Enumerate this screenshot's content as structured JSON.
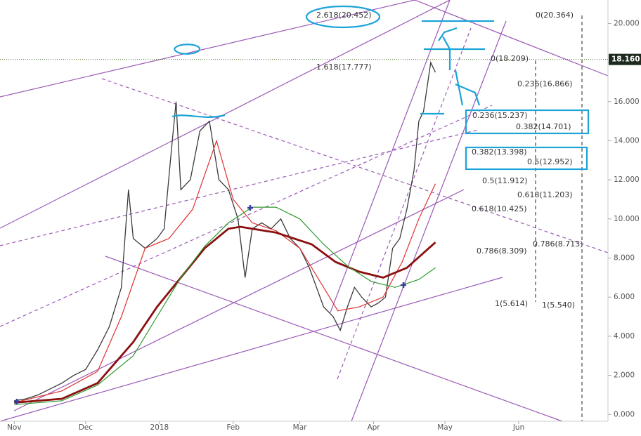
{
  "chart_data": {
    "type": "line",
    "xlim": [
      -6,
      249.5
    ],
    "xticks": [
      {
        "value": 0,
        "label": "Nov"
      },
      {
        "value": 30,
        "label": "Dec"
      },
      {
        "value": 61,
        "label": "2018"
      },
      {
        "value": 92,
        "label": "Feb"
      },
      {
        "value": 120,
        "label": "Mar"
      },
      {
        "value": 151,
        "label": "Apr"
      },
      {
        "value": 181,
        "label": "May"
      },
      {
        "value": 212,
        "label": "Jun"
      }
    ],
    "ylim": [
      -0.35,
      21.2
    ],
    "yticks": [
      {
        "value": 0,
        "label": "0.000"
      },
      {
        "value": 2,
        "label": "2.000"
      },
      {
        "value": 4,
        "label": "4.000"
      },
      {
        "value": 6,
        "label": "6.000"
      },
      {
        "value": 8,
        "label": "8.000"
      },
      {
        "value": 10,
        "label": "10.000"
      },
      {
        "value": 12,
        "label": "12.000"
      },
      {
        "value": 14,
        "label": "14.000"
      },
      {
        "value": 16,
        "label": "16.000"
      },
      {
        "value": 18,
        "label": "18.000"
      },
      {
        "value": 20,
        "label": "20.000"
      }
    ],
    "last_price": {
      "value": 18.16,
      "label": "18.160"
    },
    "series": [
      {
        "color": "#3a3a3a",
        "x": [
          0,
          5,
          10,
          15,
          20,
          25,
          30,
          35,
          40,
          45,
          48,
          50,
          55,
          60,
          63,
          66,
          68,
          70,
          74,
          78,
          82,
          86,
          90,
          94,
          97,
          100,
          104,
          108,
          112,
          116,
          120,
          124,
          127,
          130,
          134,
          137,
          140,
          143,
          146,
          150,
          153,
          156,
          159,
          162,
          165,
          168,
          170,
          172,
          175,
          177
        ],
        "values": [
          0.7,
          0.8,
          1.0,
          1.3,
          1.6,
          2.0,
          2.3,
          3.3,
          4.5,
          6.5,
          11.5,
          9.0,
          8.5,
          9.0,
          9.5,
          13.5,
          16.0,
          11.5,
          12.0,
          14.5,
          15.0,
          12.0,
          11.5,
          10.0,
          7.0,
          9.5,
          9.8,
          9.5,
          10.0,
          9.0,
          8.5,
          7.5,
          6.5,
          5.5,
          5.0,
          4.3,
          5.5,
          6.5,
          6.0,
          5.5,
          5.7,
          6.0,
          8.5,
          9.0,
          10.5,
          12.5,
          15.0,
          15.5,
          18.0,
          17.5
        ]
      },
      {
        "color": "#e03030",
        "x": [
          0,
          20,
          35,
          45,
          55,
          65,
          75,
          85,
          92,
          100,
          110,
          120,
          130,
          136,
          145,
          155,
          163,
          170,
          177
        ],
        "values": [
          0.6,
          1.2,
          2.2,
          5.0,
          8.5,
          9.0,
          10.5,
          14.0,
          11.0,
          9.8,
          9.4,
          8.5,
          6.5,
          5.3,
          5.5,
          6.0,
          7.8,
          10.0,
          11.8
        ]
      },
      {
        "color": "#8b1010",
        "x": [
          0,
          20,
          35,
          50,
          60,
          70,
          80,
          90,
          95,
          110,
          125,
          135,
          145,
          155,
          165,
          177
        ],
        "values": [
          0.6,
          0.8,
          1.6,
          3.7,
          5.5,
          7.0,
          8.5,
          9.5,
          9.6,
          9.3,
          8.7,
          7.8,
          7.3,
          7.0,
          7.5,
          8.8
        ]
      },
      {
        "color": "#2e9a2e",
        "x": [
          0,
          20,
          35,
          50,
          60,
          70,
          80,
          90,
          100,
          110,
          120,
          130,
          140,
          150,
          160,
          170,
          177
        ],
        "values": [
          0.5,
          0.7,
          1.5,
          3.0,
          5.0,
          7.0,
          8.6,
          9.8,
          10.6,
          10.6,
          10.0,
          8.7,
          7.6,
          6.8,
          6.5,
          6.9,
          7.5
        ]
      }
    ],
    "annotations": [
      "2.618(20.452)",
      "1.618(17.777)",
      "0(20.364)",
      "0(18.209)",
      "0.236(16.866)",
      "0.236(15.237)",
      "0.382(14.701)",
      "0.382(13.398)",
      "0.5(12.952)",
      "0.5(11.912)",
      "0.618(11.203)",
      "0.618(10.425)",
      "0.786(8.309)",
      "0.786(8.713)",
      "1(5.614)",
      "1(5.540)"
    ]
  }
}
